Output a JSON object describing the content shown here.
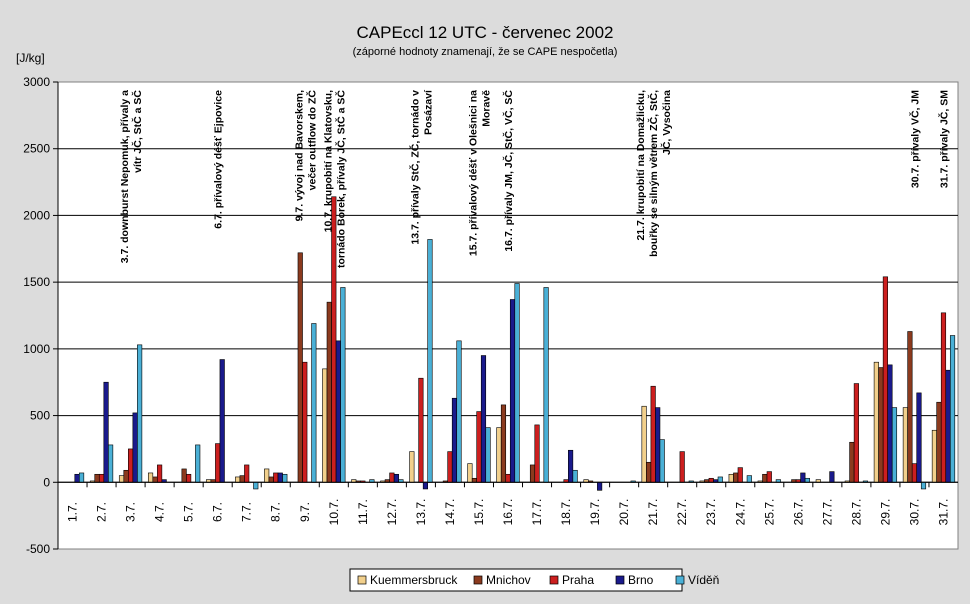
{
  "chart_data": {
    "type": "bar",
    "title": "CAPEccl 12 UTC - červenec 2002",
    "subtitle": "(záporné hodnoty znamenají, že se CAPE nespočetla)",
    "ylabel": "[J/kg]",
    "xlabel": "",
    "ylim": [
      -500,
      3000
    ],
    "yticks": [
      -500,
      0,
      500,
      1000,
      1500,
      2000,
      2500,
      3000
    ],
    "grid": true,
    "legend_position": "bottom",
    "categories": [
      "1.7.",
      "2.7.",
      "3.7.",
      "4.7.",
      "5.7.",
      "6.7.",
      "7.7.",
      "8.7.",
      "9.7.",
      "10.7.",
      "11.7.",
      "12.7.",
      "13.7.",
      "14.7.",
      "15.7.",
      "16.7.",
      "17.7.",
      "18.7.",
      "19.7.",
      "20.7.",
      "21.7.",
      "22.7.",
      "23.7.",
      "24.7.",
      "25.7.",
      "26.7.",
      "27.7.",
      "28.7.",
      "29.7.",
      "30.7.",
      "31.7."
    ],
    "series": [
      {
        "name": "Kuemmersbruck",
        "color": "#f2d08c",
        "values": [
          0,
          10,
          50,
          70,
          0,
          20,
          40,
          100,
          0,
          850,
          20,
          10,
          230,
          0,
          140,
          410,
          0,
          0,
          20,
          0,
          570,
          0,
          10,
          60,
          10,
          0,
          20,
          10,
          900,
          560,
          390
        ]
      },
      {
        "name": "Mnichov",
        "color": "#8b3a1e",
        "values": [
          0,
          60,
          90,
          40,
          100,
          20,
          50,
          40,
          1720,
          1350,
          10,
          20,
          0,
          10,
          30,
          580,
          130,
          0,
          10,
          0,
          150,
          0,
          20,
          70,
          60,
          20,
          0,
          300,
          860,
          1130,
          600
        ]
      },
      {
        "name": "Praha",
        "color": "#cc1f1f",
        "values": [
          0,
          60,
          250,
          130,
          60,
          290,
          130,
          70,
          900,
          2140,
          10,
          70,
          780,
          230,
          530,
          60,
          430,
          20,
          0,
          0,
          720,
          230,
          30,
          110,
          80,
          20,
          0,
          740,
          1540,
          140,
          1270
        ]
      },
      {
        "name": "Brno",
        "color": "#1a1a8c",
        "values": [
          60,
          750,
          520,
          20,
          0,
          920,
          0,
          70,
          0,
          1060,
          0,
          60,
          -50,
          630,
          950,
          1370,
          0,
          240,
          -60,
          0,
          560,
          0,
          20,
          0,
          0,
          70,
          80,
          0,
          880,
          670,
          840
        ]
      },
      {
        "name": "Víděň",
        "color": "#4ab0d6",
        "values": [
          70,
          280,
          1030,
          0,
          280,
          0,
          -50,
          60,
          1190,
          1460,
          20,
          20,
          1820,
          1060,
          410,
          1490,
          1460,
          90,
          0,
          10,
          320,
          10,
          40,
          50,
          20,
          30,
          0,
          10,
          560,
          -50,
          1100
        ]
      }
    ],
    "annotations": [
      {
        "day_index": 2,
        "lines": [
          "3.7. downburst Nepomuk, přívaly a",
          "vítr JČ, StČ a SČ"
        ]
      },
      {
        "day_index": 5,
        "lines": [
          "6.7. přívalový déšť Ejpovice"
        ]
      },
      {
        "day_index": 8,
        "lines": [
          "9.7. vývoj nad Bavorskem,",
          "večer outflow do ZČ"
        ]
      },
      {
        "day_index": 9,
        "lines": [
          "10.7. krupobití na Klatovsku,",
          "tornádo Borek, přívaly JČ, StČ a SČ"
        ]
      },
      {
        "day_index": 12,
        "lines": [
          "13.7. přívaly StČ, ZČ, tornádo v",
          "Posázaví"
        ]
      },
      {
        "day_index": 14,
        "lines": [
          "15.7. přívalový déšť v Olešnici na",
          "Moravě"
        ]
      },
      {
        "day_index": 15,
        "lines": [
          "16.7. přívaly JM, JČ, StČ, VČ, SČ"
        ]
      },
      {
        "day_index": 20,
        "lines": [
          "21.7. krupobití na Domažlicku,",
          "bouřky se silným větrem ZČ, StČ,",
          "JČ, Vysočina"
        ]
      },
      {
        "day_index": 29,
        "lines": [
          "30.7. přívaly VČ, JM"
        ]
      },
      {
        "day_index": 30,
        "lines": [
          "31.7. přívaly JČ, SM"
        ]
      }
    ]
  }
}
